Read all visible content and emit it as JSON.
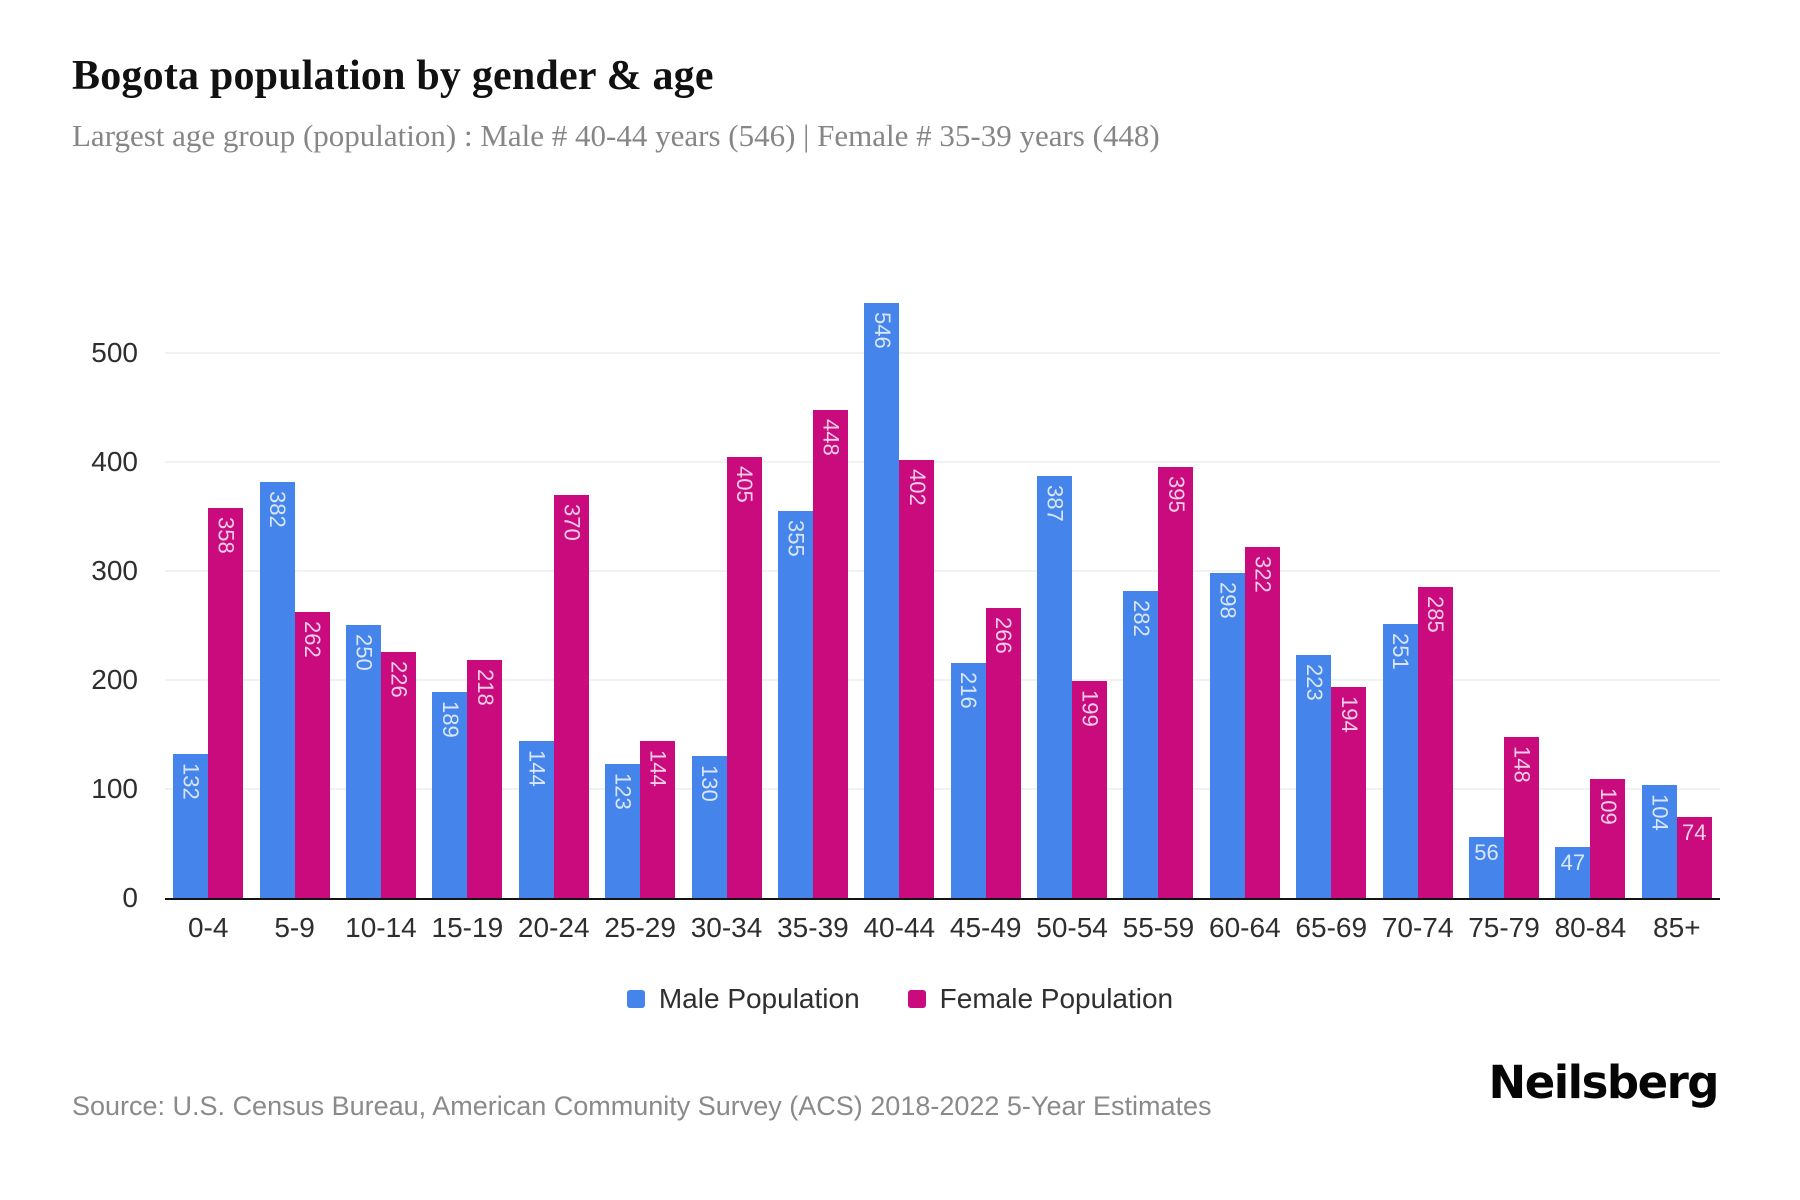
{
  "header": {
    "title": "Bogota population by gender & age",
    "subtitle": "Largest age group (population) : Male # 40-44 years (546) | Female # 35-39 years (448)"
  },
  "chart_data": {
    "type": "bar",
    "title": "Bogota population by gender & age",
    "xlabel": "",
    "ylabel": "",
    "categories": [
      "0-4",
      "5-9",
      "10-14",
      "15-19",
      "20-24",
      "25-29",
      "30-34",
      "35-39",
      "40-44",
      "45-49",
      "50-54",
      "55-59",
      "60-64",
      "65-69",
      "70-74",
      "75-79",
      "80-84",
      "85+"
    ],
    "series": [
      {
        "name": "Male Population",
        "color": "#4484EB",
        "values": [
          132,
          382,
          250,
          189,
          144,
          123,
          130,
          355,
          546,
          216,
          387,
          282,
          298,
          223,
          251,
          56,
          47,
          104
        ]
      },
      {
        "name": "Female Population",
        "color": "#C90B7D",
        "values": [
          358,
          262,
          226,
          218,
          370,
          144,
          405,
          448,
          402,
          266,
          199,
          395,
          322,
          194,
          285,
          148,
          109,
          74
        ]
      }
    ],
    "ylim": [
      0,
      560
    ],
    "yticks": [
      0,
      100,
      200,
      300,
      400,
      500
    ],
    "grid": true,
    "legend_position": "bottom",
    "bar_label_color": "rgba(255,255,255,0.8)",
    "gridline_color": "#f2f2f2",
    "axis_line_color": "#141414"
  },
  "footer": {
    "source": "Source: U.S. Census Bureau, American Community Survey (ACS) 2018-2022 5-Year Estimates",
    "brand": "Neilsberg"
  }
}
